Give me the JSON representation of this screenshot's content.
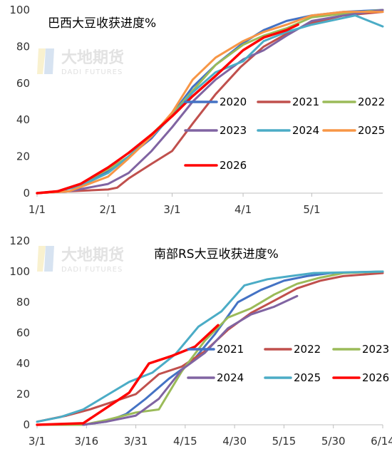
{
  "watermark": {
    "text_cn": "大地期货",
    "text_en": "DADI FUTURES"
  },
  "chart_data": [
    {
      "type": "line",
      "title": "巴西大豆收获进度%",
      "xlabel": "",
      "ylabel": "",
      "ylim": [
        0,
        100
      ],
      "xlim": [
        "01-01",
        "06-01"
      ],
      "x_ticks": [
        {
          "date": "01-01",
          "label": "1/1"
        },
        {
          "date": "02-01",
          "label": "2/1"
        },
        {
          "date": "03-01",
          "label": "3/1"
        },
        {
          "date": "04-01",
          "label": "4/1"
        },
        {
          "date": "05-01",
          "label": "5/1"
        }
      ],
      "y_ticks": [
        0,
        20,
        40,
        60,
        80,
        100
      ],
      "grid": false,
      "legend_position": "right",
      "series": [
        {
          "name": "2020",
          "color": "#4472c4",
          "points": [
            [
              "01-01",
              0
            ],
            [
              "01-10",
              1
            ],
            [
              "01-20",
              4
            ],
            [
              "02-01",
              12
            ],
            [
              "02-10",
              20
            ],
            [
              "02-20",
              30
            ],
            [
              "03-01",
              43
            ],
            [
              "03-10",
              58
            ],
            [
              "03-20",
              70
            ],
            [
              "04-01",
              82
            ],
            [
              "04-10",
              89
            ],
            [
              "04-20",
              94
            ],
            [
              "05-01",
              97
            ],
            [
              "05-15",
              99
            ],
            [
              "06-01",
              100
            ]
          ]
        },
        {
          "name": "2021",
          "color": "#c0504d",
          "points": [
            [
              "01-01",
              0
            ],
            [
              "01-15",
              1
            ],
            [
              "02-01",
              2
            ],
            [
              "02-05",
              3
            ],
            [
              "02-10",
              8
            ],
            [
              "02-20",
              16
            ],
            [
              "03-01",
              23
            ],
            [
              "03-10",
              38
            ],
            [
              "03-20",
              54
            ],
            [
              "03-31",
              69
            ],
            [
              "04-10",
              80
            ],
            [
              "04-20",
              87
            ],
            [
              "05-01",
              93
            ],
            [
              "05-15",
              97
            ],
            [
              "06-01",
              99
            ]
          ]
        },
        {
          "name": "2022",
          "color": "#9bbb59",
          "points": [
            [
              "01-01",
              0
            ],
            [
              "01-10",
              1
            ],
            [
              "01-20",
              5
            ],
            [
              "02-01",
              13
            ],
            [
              "02-10",
              20
            ],
            [
              "02-20",
              32
            ],
            [
              "03-01",
              43
            ],
            [
              "03-10",
              56
            ],
            [
              "03-20",
              70
            ],
            [
              "04-01",
              81
            ],
            [
              "04-10",
              86
            ],
            [
              "04-20",
              90
            ],
            [
              "05-01",
              96
            ],
            [
              "05-15",
              98
            ],
            [
              "06-01",
              100
            ]
          ]
        },
        {
          "name": "2023",
          "color": "#8064a2",
          "points": [
            [
              "01-01",
              0
            ],
            [
              "01-15",
              1
            ],
            [
              "02-01",
              5
            ],
            [
              "02-10",
              11
            ],
            [
              "02-20",
              23
            ],
            [
              "03-01",
              36
            ],
            [
              "03-10",
              50
            ],
            [
              "03-20",
              62
            ],
            [
              "04-01",
              73
            ],
            [
              "04-10",
              78
            ],
            [
              "04-20",
              86
            ],
            [
              "05-01",
              94
            ],
            [
              "05-15",
              97
            ],
            [
              "06-01",
              100
            ]
          ]
        },
        {
          "name": "2024",
          "color": "#4bacc6",
          "points": [
            [
              "01-01",
              0
            ],
            [
              "01-10",
              1
            ],
            [
              "01-20",
              4
            ],
            [
              "02-01",
              11
            ],
            [
              "02-10",
              20
            ],
            [
              "02-20",
              31
            ],
            [
              "03-01",
              42
            ],
            [
              "03-10",
              55
            ],
            [
              "03-20",
              66
            ],
            [
              "04-01",
              72
            ],
            [
              "04-10",
              83
            ],
            [
              "04-20",
              88
            ],
            [
              "05-01",
              92
            ],
            [
              "05-20",
              97
            ],
            [
              "06-01",
              91
            ]
          ]
        },
        {
          "name": "2025",
          "color": "#f79646",
          "points": [
            [
              "01-01",
              0
            ],
            [
              "01-15",
              1
            ],
            [
              "02-01",
              9
            ],
            [
              "02-10",
              19
            ],
            [
              "02-20",
              31
            ],
            [
              "03-01",
              44
            ],
            [
              "03-10",
              62
            ],
            [
              "03-20",
              74
            ],
            [
              "04-01",
              83
            ],
            [
              "04-10",
              88
            ],
            [
              "04-20",
              92
            ],
            [
              "05-01",
              97
            ],
            [
              "05-15",
              99
            ],
            [
              "06-01",
              99
            ]
          ]
        },
        {
          "name": "2026",
          "color": "#ff0000",
          "points": [
            [
              "01-01",
              0
            ],
            [
              "01-10",
              1
            ],
            [
              "01-20",
              5
            ],
            [
              "02-01",
              14
            ],
            [
              "02-10",
              22
            ],
            [
              "02-20",
              32
            ],
            [
              "03-01",
              42
            ],
            [
              "03-10",
              53
            ],
            [
              "03-20",
              64
            ],
            [
              "04-01",
              78
            ],
            [
              "04-10",
              85
            ],
            [
              "04-20",
              89
            ],
            [
              "04-25",
              92
            ]
          ]
        }
      ]
    },
    {
      "type": "line",
      "title": "南部RS大豆收获进度%",
      "xlabel": "",
      "ylabel": "",
      "ylim": [
        0,
        120
      ],
      "xlim": [
        "03-01",
        "06-14"
      ],
      "x_ticks": [
        {
          "date": "03-01",
          "label": "3/1"
        },
        {
          "date": "03-16",
          "label": "3/16"
        },
        {
          "date": "03-31",
          "label": "3/31"
        },
        {
          "date": "04-15",
          "label": "4/15"
        },
        {
          "date": "04-30",
          "label": "4/30"
        },
        {
          "date": "05-15",
          "label": "5/15"
        },
        {
          "date": "05-30",
          "label": "5/30"
        },
        {
          "date": "06-14",
          "label": "6/14"
        }
      ],
      "y_ticks": [
        0,
        20,
        40,
        60,
        80,
        100,
        120
      ],
      "grid": false,
      "legend_position": "right",
      "series": [
        {
          "name": "2021",
          "color": "#4472c4",
          "points": [
            [
              "03-01",
              0
            ],
            [
              "03-15",
              0
            ],
            [
              "03-22",
              2
            ],
            [
              "03-28",
              7
            ],
            [
              "04-03",
              17
            ],
            [
              "04-10",
              30
            ],
            [
              "04-17",
              41
            ],
            [
              "04-24",
              59
            ],
            [
              "05-01",
              80
            ],
            [
              "05-08",
              88
            ],
            [
              "05-15",
              94
            ],
            [
              "05-22",
              97
            ],
            [
              "05-29",
              99
            ],
            [
              "06-14",
              100
            ]
          ]
        },
        {
          "name": "2022",
          "color": "#c0504d",
          "points": [
            [
              "03-01",
              2
            ],
            [
              "03-10",
              6
            ],
            [
              "03-17",
              10
            ],
            [
              "03-24",
              15
            ],
            [
              "03-31",
              20
            ],
            [
              "04-07",
              33
            ],
            [
              "04-14",
              38
            ],
            [
              "04-21",
              48
            ],
            [
              "04-28",
              62
            ],
            [
              "05-05",
              73
            ],
            [
              "05-12",
              81
            ],
            [
              "05-19",
              89
            ],
            [
              "05-26",
              94
            ],
            [
              "06-02",
              97
            ],
            [
              "06-14",
              99
            ]
          ]
        },
        {
          "name": "2023",
          "color": "#9bbb59",
          "points": [
            [
              "03-01",
              0
            ],
            [
              "03-15",
              0
            ],
            [
              "03-22",
              3
            ],
            [
              "03-31",
              8
            ],
            [
              "04-07",
              10
            ],
            [
              "04-14",
              35
            ],
            [
              "04-21",
              55
            ],
            [
              "04-28",
              70
            ],
            [
              "05-05",
              76
            ],
            [
              "05-12",
              85
            ],
            [
              "05-19",
              92
            ],
            [
              "05-26",
              96
            ],
            [
              "06-02",
              99
            ],
            [
              "06-14",
              100
            ]
          ]
        },
        {
          "name": "2024",
          "color": "#8064a2",
          "points": [
            [
              "03-15",
              0
            ],
            [
              "03-22",
              2
            ],
            [
              "03-31",
              6
            ],
            [
              "04-07",
              17
            ],
            [
              "04-14",
              36
            ],
            [
              "04-21",
              47
            ],
            [
              "04-28",
              63
            ],
            [
              "05-05",
              72
            ],
            [
              "05-12",
              77
            ],
            [
              "05-19",
              84
            ]
          ]
        },
        {
          "name": "2025",
          "color": "#4bacc6",
          "points": [
            [
              "03-01",
              2
            ],
            [
              "03-08",
              5
            ],
            [
              "03-15",
              10
            ],
            [
              "03-22",
              19
            ],
            [
              "03-29",
              28
            ],
            [
              "04-05",
              34
            ],
            [
              "04-12",
              46
            ],
            [
              "04-19",
              64
            ],
            [
              "04-26",
              74
            ],
            [
              "05-03",
              91
            ],
            [
              "05-10",
              95
            ],
            [
              "05-17",
              97
            ],
            [
              "05-24",
              99
            ],
            [
              "06-14",
              100
            ]
          ]
        },
        {
          "name": "2026",
          "color": "#ff0000",
          "points": [
            [
              "03-01",
              0
            ],
            [
              "03-15",
              1
            ],
            [
              "03-22",
              11
            ],
            [
              "03-29",
              21
            ],
            [
              "04-04",
              40
            ],
            [
              "04-11",
              45
            ],
            [
              "04-18",
              51
            ],
            [
              "04-25",
              65
            ]
          ]
        }
      ]
    }
  ]
}
